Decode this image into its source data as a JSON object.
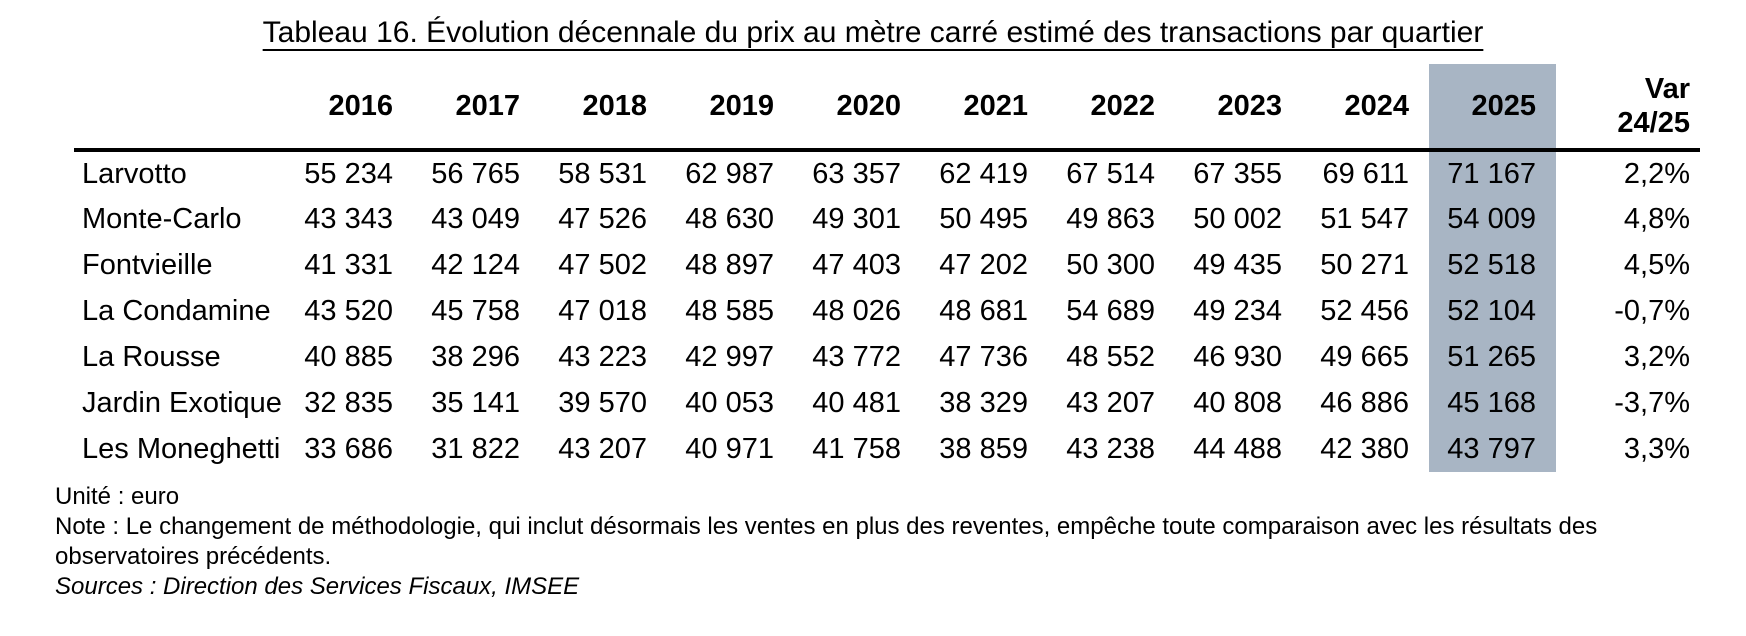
{
  "title": "Tableau 16. Évolution décennale du prix au mètre carré estimé des transactions par quartier",
  "table": {
    "unit": "euro",
    "highlight_year": "2025",
    "highlight_color": "#a8b5c4",
    "years": [
      "2016",
      "2017",
      "2018",
      "2019",
      "2020",
      "2021",
      "2022",
      "2023",
      "2024",
      "2025"
    ],
    "var_header": {
      "line1": "Var",
      "line2": "24/25"
    },
    "rows": [
      {
        "label": "Larvotto",
        "values": [
          "55 234",
          "56 765",
          "58 531",
          "62 987",
          "63 357",
          "62 419",
          "67 514",
          "67 355",
          "69 611",
          "71 167"
        ],
        "var": "2,2%"
      },
      {
        "label": "Monte-Carlo",
        "values": [
          "43 343",
          "43 049",
          "47 526",
          "48 630",
          "49 301",
          "50 495",
          "49 863",
          "50 002",
          "51 547",
          "54 009"
        ],
        "var": "4,8%"
      },
      {
        "label": "Fontvieille",
        "values": [
          "41 331",
          "42 124",
          "47 502",
          "48 897",
          "47 403",
          "47 202",
          "50 300",
          "49 435",
          "50 271",
          "52 518"
        ],
        "var": "4,5%"
      },
      {
        "label": "La Condamine",
        "values": [
          "43 520",
          "45 758",
          "47 018",
          "48 585",
          "48 026",
          "48 681",
          "54 689",
          "49 234",
          "52 456",
          "52 104"
        ],
        "var": "-0,7%"
      },
      {
        "label": "La Rousse",
        "values": [
          "40 885",
          "38 296",
          "43 223",
          "42 997",
          "43 772",
          "47 736",
          "48 552",
          "46 930",
          "49 665",
          "51 265"
        ],
        "var": "3,2%"
      },
      {
        "label": "Jardin Exotique",
        "values": [
          "32 835",
          "35 141",
          "39 570",
          "40 053",
          "40 481",
          "38 329",
          "43 207",
          "40 808",
          "46 886",
          "45 168"
        ],
        "var": "-3,7%"
      },
      {
        "label": "Les Moneghetti",
        "values": [
          "33 686",
          "31 822",
          "43 207",
          "40 971",
          "41 758",
          "38 859",
          "43 238",
          "44 488",
          "42 380",
          "43 797"
        ],
        "var": "3,3%"
      }
    ]
  },
  "footer": {
    "unit_line": "Unité : euro",
    "note": "Note : Le changement de méthodologie, qui inclut désormais les ventes en plus des reventes, empêche toute comparaison avec les résultats des observatoires précédents.",
    "sources": "Sources : Direction des Services Fiscaux, IMSEE"
  }
}
